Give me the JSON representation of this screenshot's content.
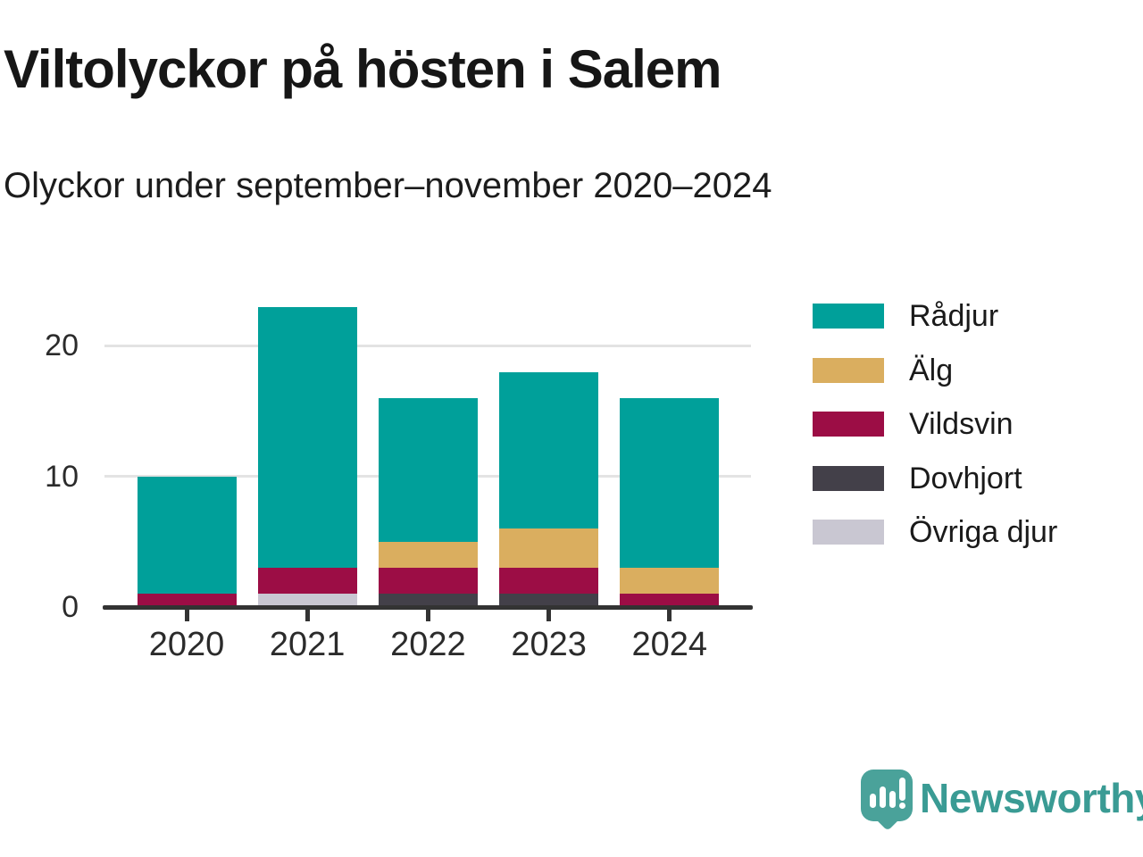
{
  "chart_data": {
    "type": "bar",
    "stacked": true,
    "title": "Viltolyckor på hösten i Salem",
    "subtitle": "Olyckor under september–november 2020–2024",
    "categories": [
      "2020",
      "2021",
      "2022",
      "2023",
      "2024"
    ],
    "series": [
      {
        "name": "Rådjur",
        "color": "#00a09a",
        "values": [
          9,
          20,
          11,
          12,
          13
        ]
      },
      {
        "name": "Älg",
        "color": "#daae5f",
        "values": [
          0,
          0,
          2,
          3,
          2
        ]
      },
      {
        "name": "Vildsvin",
        "color": "#9c0d45",
        "values": [
          1,
          2,
          2,
          2,
          1
        ]
      },
      {
        "name": "Dovhjort",
        "color": "#434049",
        "values": [
          0,
          0,
          1,
          1,
          0
        ]
      },
      {
        "name": "Övriga djur",
        "color": "#c9c7d2",
        "values": [
          0,
          1,
          0,
          0,
          0
        ]
      }
    ],
    "totals": [
      10,
      23,
      16,
      18,
      16
    ],
    "stack_order_bottom_to_top": [
      "Övriga djur",
      "Dovhjort",
      "Vildsvin",
      "Älg",
      "Rådjur"
    ],
    "xlabel": "",
    "ylabel": "",
    "ylim": [
      0,
      24
    ],
    "yticks": [
      0,
      10,
      20
    ],
    "grid": "horizontal",
    "legend_position": "right"
  },
  "footer": {
    "brand": "Newsworthy",
    "icon": "newsworthy-speech-bubble-bar-chart-icon"
  },
  "colors": {
    "background": "#ffffff",
    "axis": "#333333",
    "grid": "#e3e3e3",
    "text": "#1a1a1a",
    "logo_icon": "#4aa29a",
    "logo_text": "#3a9b94"
  }
}
